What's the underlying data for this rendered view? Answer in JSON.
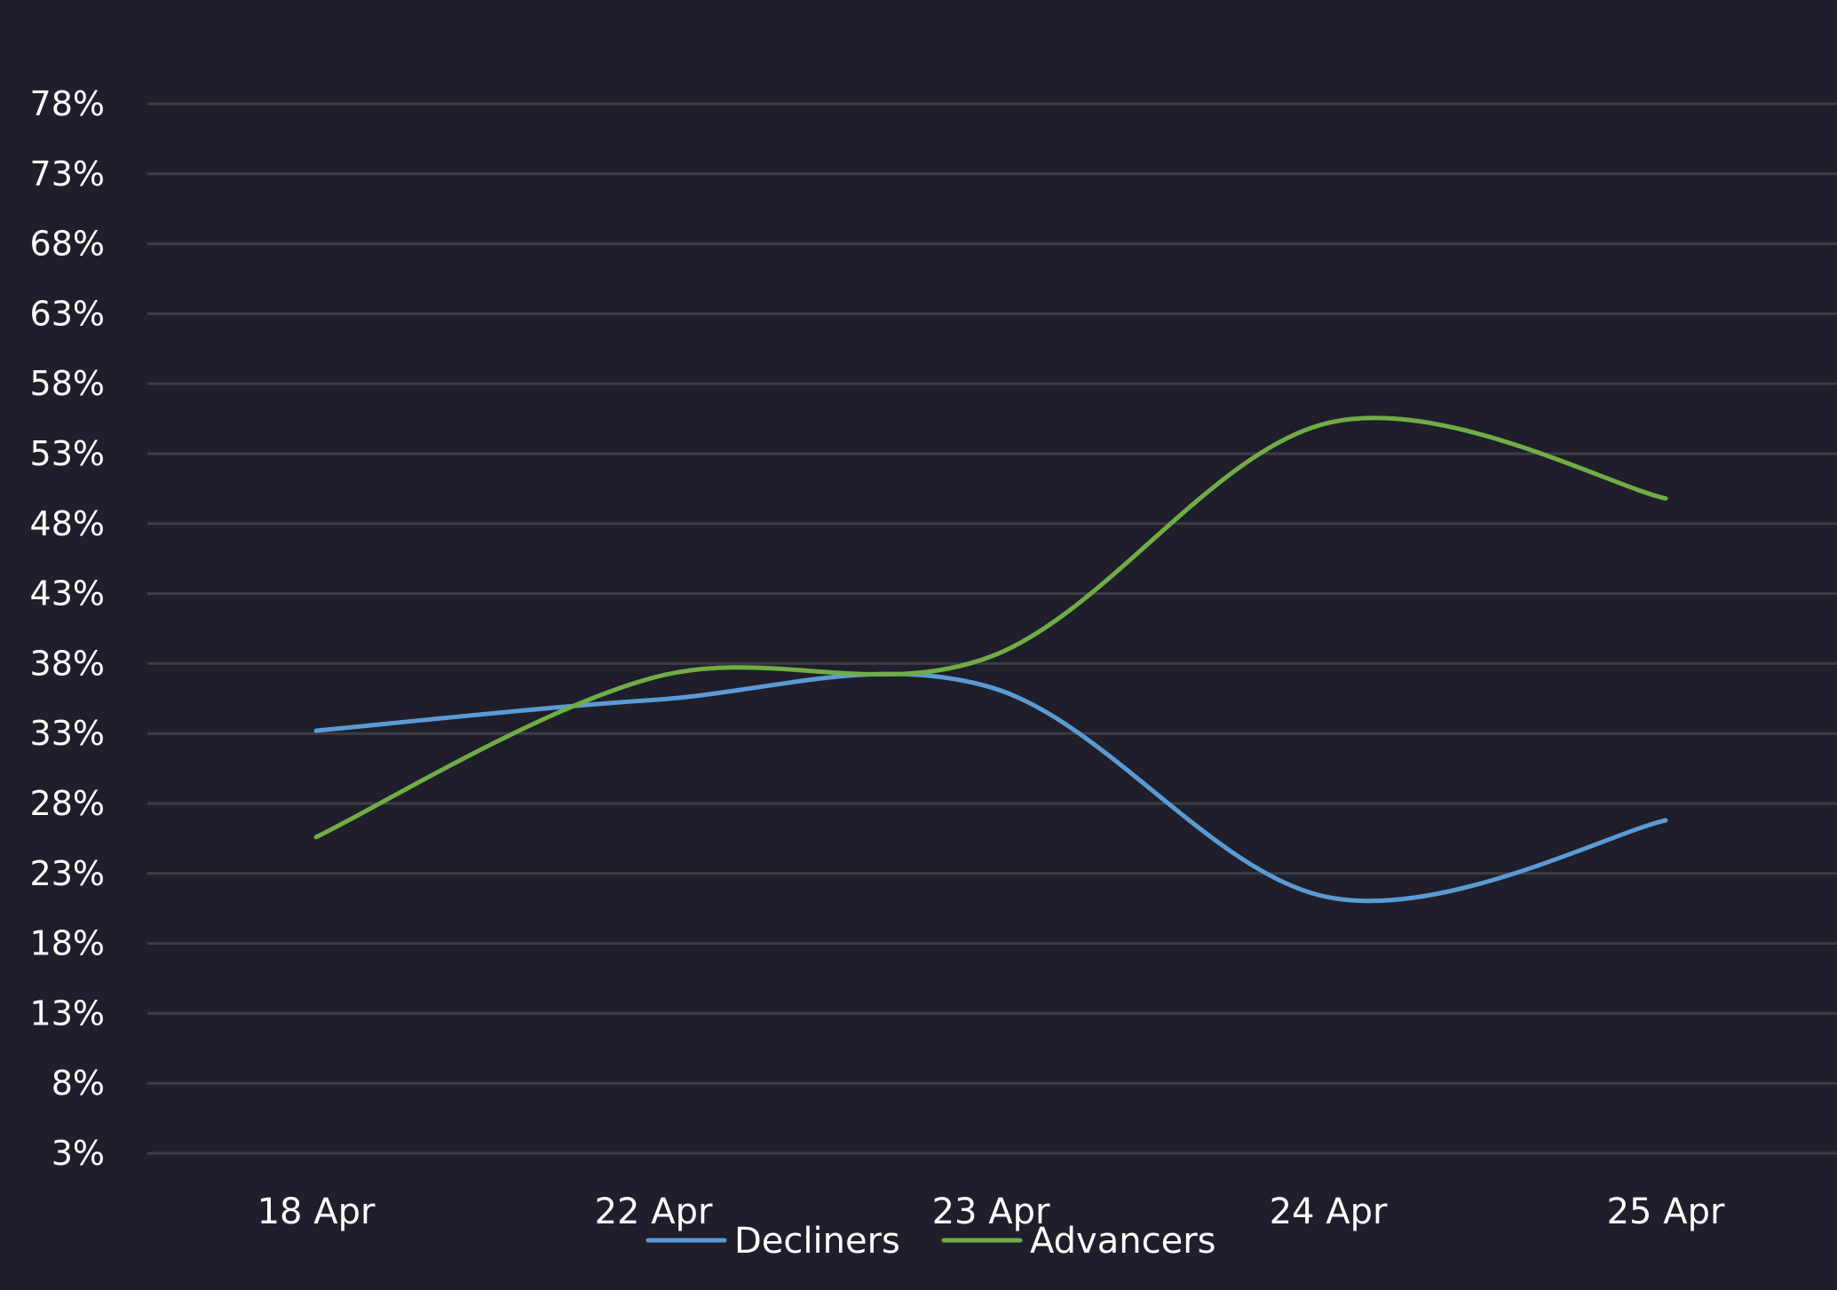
{
  "chart_data": {
    "type": "line",
    "categories": [
      "18 Apr",
      "22 Apr",
      "23 Apr",
      "24 Apr",
      "25 Apr"
    ],
    "series": [
      {
        "name": "Decliners",
        "color": "#5b9bd5",
        "values": [
          33.2,
          35.4,
          36.3,
          21.3,
          26.8
        ]
      },
      {
        "name": "Advancers",
        "color": "#70ad47",
        "values": [
          25.6,
          37.0,
          38.5,
          55.2,
          49.8
        ]
      }
    ],
    "yticks": [
      "78%",
      "73%",
      "68%",
      "63%",
      "58%",
      "53%",
      "48%",
      "43%",
      "38%",
      "33%",
      "28%",
      "23%",
      "18%",
      "13%",
      "8%",
      "3%"
    ],
    "ylim": [
      3,
      78
    ],
    "ytick_step": 5,
    "grid": true,
    "legend_position": "bottom",
    "background_color": "#1f1e2a",
    "grid_color": "#3d3d45",
    "text_color": "#ffffff"
  }
}
